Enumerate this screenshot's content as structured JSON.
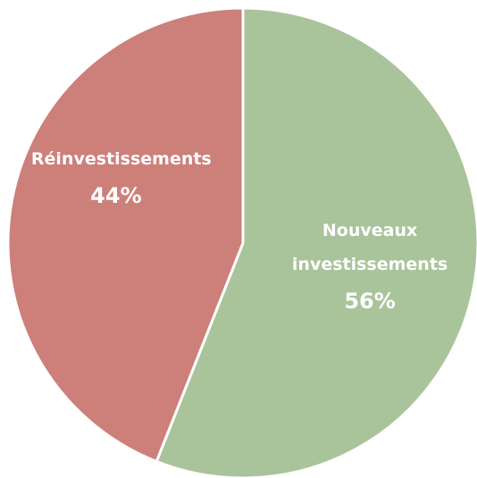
{
  "chart_data": {
    "type": "pie",
    "categories": [
      "Nouveaux investissements",
      "Réinvestissements"
    ],
    "values": [
      56,
      44
    ],
    "value_labels": [
      "56%",
      "44%"
    ],
    "colors": [
      "#a9c49a",
      "#cd7f7a"
    ]
  }
}
